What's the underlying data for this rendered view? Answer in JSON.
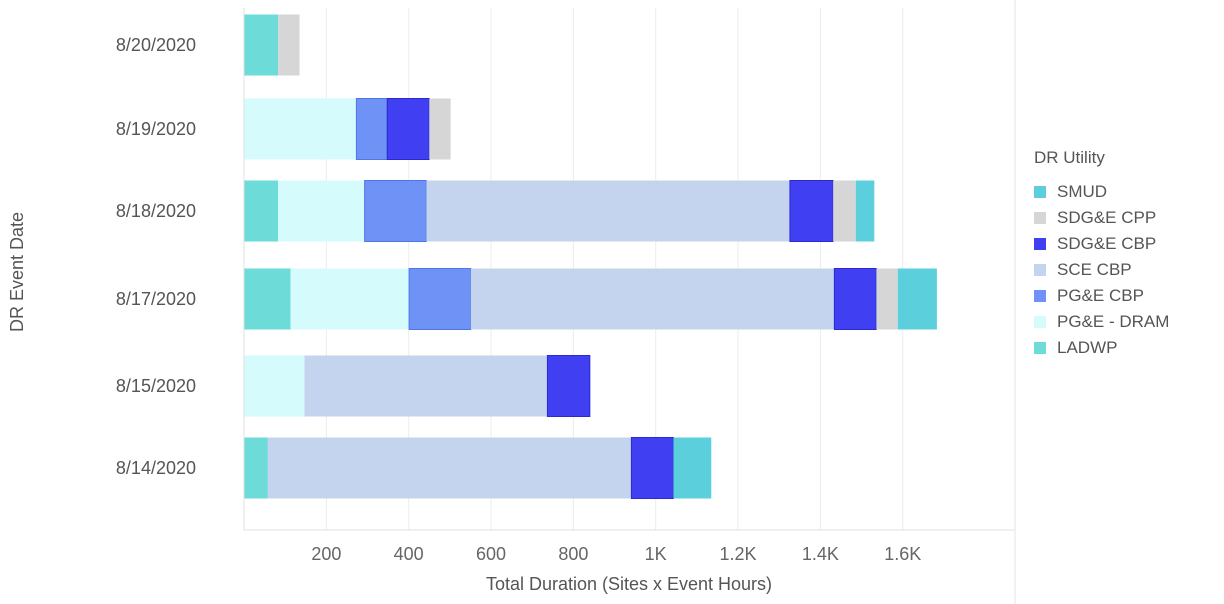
{
  "chart_data": {
    "type": "bar",
    "orientation": "horizontal",
    "stacked": true,
    "xlabel": "Total Duration (Sites x Event Hours)",
    "ylabel": "DR Event Date",
    "xlim": [
      0,
      1800
    ],
    "x_ticks": [
      200,
      400,
      600,
      800,
      1000,
      1200,
      1400,
      1600
    ],
    "x_tick_labels": [
      "200",
      "400",
      "600",
      "800",
      "1K",
      "1.2K",
      "1.4K",
      "1.6K"
    ],
    "grid": true,
    "legend_position": "right",
    "legend_title": "DR Utility",
    "categories": [
      "8/20/2020",
      "8/19/2020",
      "8/18/2020",
      "8/17/2020",
      "8/15/2020",
      "8/14/2020"
    ],
    "stack_order": [
      "LADWP",
      "PG&E - DRAM",
      "PG&E CBP",
      "SCE CBP",
      "SDG&E CBP",
      "SDG&E CPP",
      "SMUD"
    ],
    "series": [
      {
        "name": "SMUD",
        "color": "#5bcfdb",
        "values": [
          0,
          0,
          45,
          95,
          0,
          92
        ]
      },
      {
        "name": "SDG&E CPP",
        "color": "#d6d6d6",
        "values": [
          52,
          52,
          55,
          52,
          0,
          0
        ]
      },
      {
        "name": "SDG&E CBP",
        "color": "#4040f2",
        "values": [
          0,
          102,
          105,
          102,
          103,
          102
        ]
      },
      {
        "name": "SCE CBP",
        "color": "#c4d4ee",
        "values": [
          0,
          0,
          883,
          883,
          590,
          883
        ]
      },
      {
        "name": "PG&E CBP",
        "color": "#6e92f5",
        "values": [
          0,
          75,
          150,
          150,
          0,
          0
        ]
      },
      {
        "name": "PG&E - DRAM",
        "color": "#d6fbfd",
        "values": [
          0,
          273,
          210,
          288,
          147,
          0
        ]
      },
      {
        "name": "LADWP",
        "color": "#6ddbd8",
        "values": [
          83,
          0,
          83,
          113,
          0,
          58
        ]
      }
    ]
  }
}
